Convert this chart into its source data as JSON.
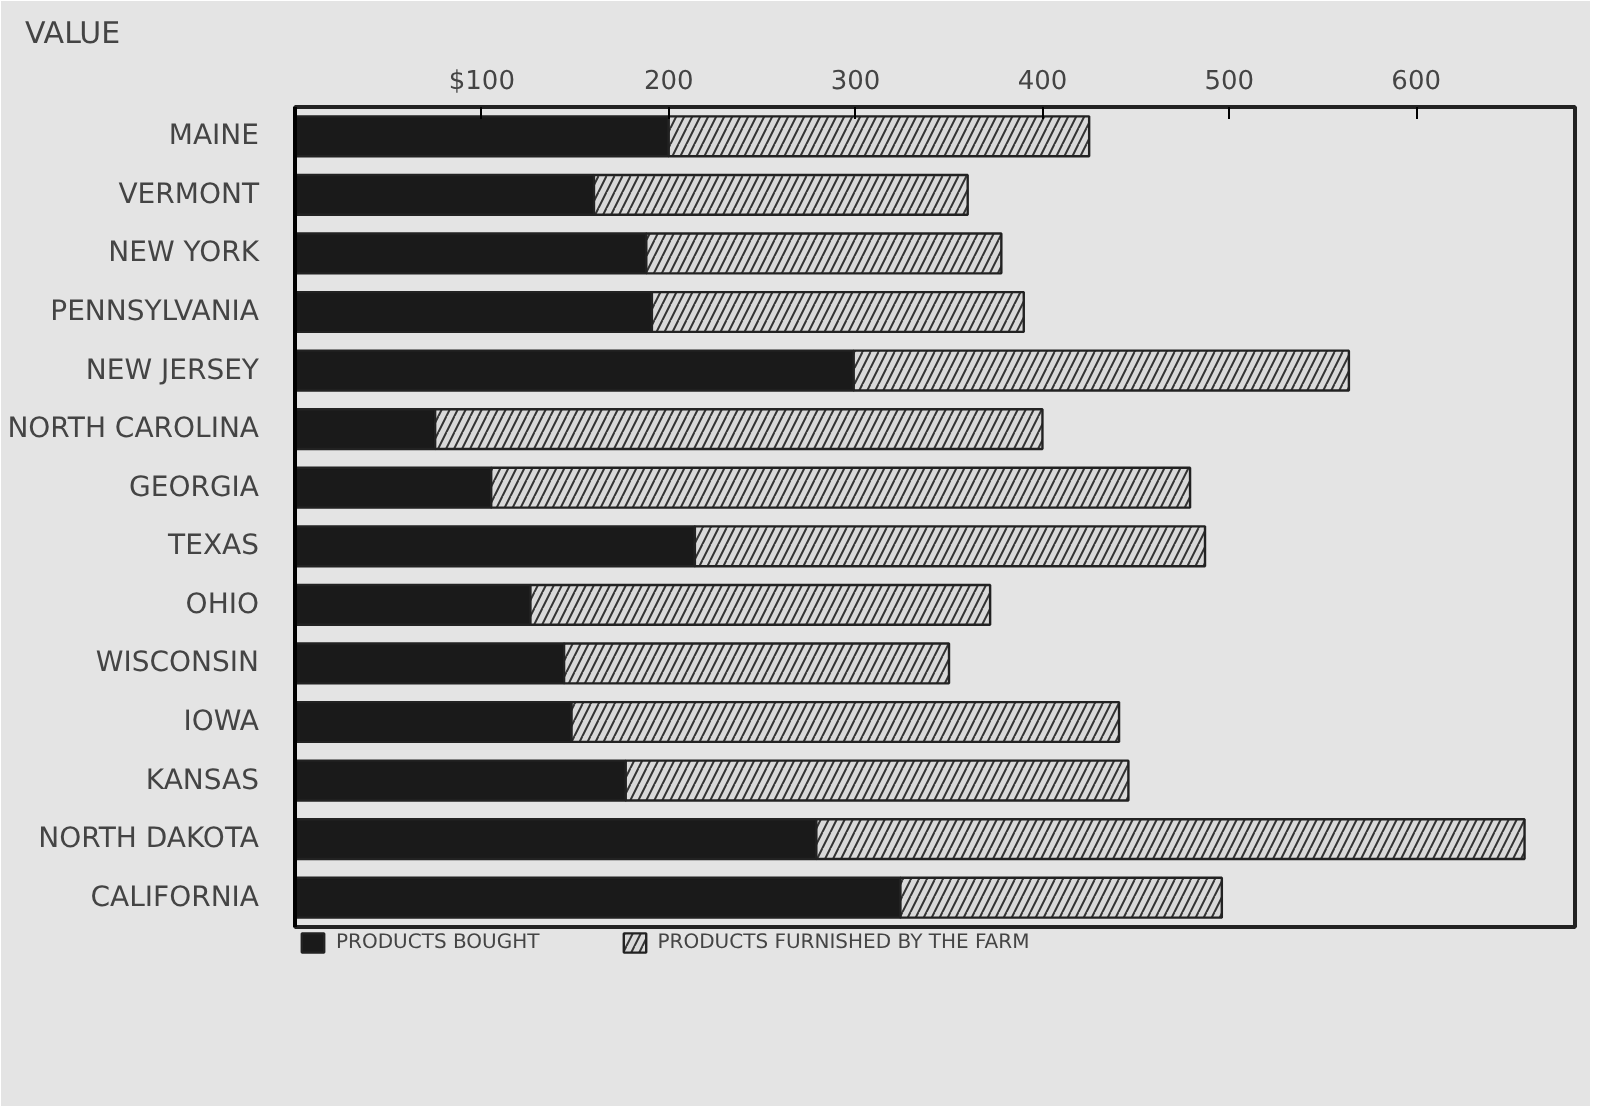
{
  "chart_data": {
    "type": "bar",
    "orientation": "horizontal",
    "stacked": true,
    "ylabel": "VALUE",
    "categories": [
      "MAINE",
      "VERMONT",
      "NEW YORK",
      "PENNSYLVANIA",
      "NEW JERSEY",
      "NORTH CAROLINA",
      "GEORGIA",
      "TEXAS",
      "OHIO",
      "WISCONSIN",
      "IOWA",
      "KANSAS",
      "NORTH DAKOTA",
      "CALIFORNIA"
    ],
    "series": [
      {
        "name": "PRODUCTS BOUGHT",
        "color": "#1a1a1a",
        "values": [
          200,
          160,
          188,
          191,
          299,
          75,
          105,
          214,
          126,
          144,
          148,
          177,
          279,
          324
        ]
      },
      {
        "name": "PRODUCTS FURNISHED BY THE FARM",
        "color": "#d9d9d9",
        "values": [
          225,
          200,
          190,
          199,
          265,
          325,
          374,
          273,
          246,
          206,
          293,
          269,
          379,
          172
        ]
      }
    ],
    "xlim": [
      0,
      685
    ],
    "xticks": [
      {
        "value": 100,
        "label": "$100"
      },
      200,
      300,
      400,
      500,
      600
    ],
    "grid": false,
    "legend": "bottom"
  }
}
